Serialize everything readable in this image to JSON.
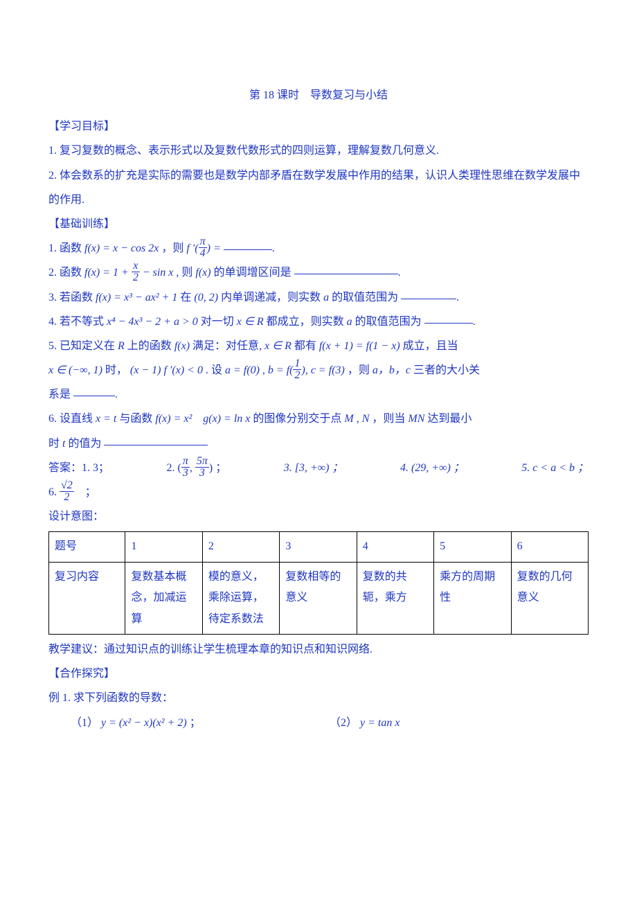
{
  "title": "第 18 课时　导数复习与小结",
  "section_objectives": "【学习目标】",
  "objectives": [
    "1. 复习复数的概念、表示形式以及复数代数形式的四则运算，理解复数几何意义.",
    "2. 体会数系的扩充是实际的需要也是数学内部矛盾在数学发展中作用的结果，认识人类理性思维在数学发展中的作用."
  ],
  "section_basic": "【基础训练】",
  "q1_pre": "1. 函数 ",
  "q1_formula_a": "f(x) = x − cos 2x",
  "q1_mid": " ，则 ",
  "q1_formula_b_left": "f ′(",
  "q1_frac_num": "π",
  "q1_frac_den": "4",
  "q1_formula_b_right": ") = ",
  "q1_dot": ".",
  "q2_pre": "2. 函数 ",
  "q2_formula_a_left": "f(x) = 1 + ",
  "q2_frac_num": "x",
  "q2_frac_den": "2",
  "q2_formula_a_right": " − sin x",
  "q2_mid": " , 则 ",
  "q2_formula_b": "f(x)",
  "q2_post": " 的单调增区间是",
  "q2_dot": ".",
  "q3_pre": "3. 若函数 ",
  "q3_formula_a": "f(x) = x³ − ax² + 1",
  "q3_mid_a": " 在 ",
  "q3_formula_b": "(0, 2)",
  "q3_mid_b": " 内单调递减，则实数 ",
  "q3_formula_c": "a",
  "q3_post": " 的取值范围为",
  "q3_dot": ".",
  "q4_pre": "4. 若不等式 ",
  "q4_formula_a": "x⁴ − 4x³ − 2 + a > 0",
  "q4_mid_a": " 对一切 ",
  "q4_formula_b": "x ∈ R",
  "q4_mid_b": " 都成立，则实数 ",
  "q4_formula_c": "a",
  "q4_post": " 的取值范围为",
  "q4_dot": ".",
  "q5_pre": "5. 已知定义在 ",
  "q5_R": "R",
  "q5_a": " 上的函数 ",
  "q5_fx": "f(x)",
  "q5_b": " 满足：对任意, ",
  "q5_xr": "x ∈ R",
  "q5_c": " 都有 ",
  "q5_eq1": "f(x + 1) = f(1 − x)",
  "q5_d": " 成立，且当",
  "q5_l2_a": "x ∈ (−∞, 1)",
  "q5_l2_b": " 时，",
  "q5_l2_c": "(x − 1) f ′(x) < 0",
  "q5_l2_d": " . 设 ",
  "q5_l2_e": "a = f(0)",
  "q5_l2_f": " , ",
  "q5_l2_g_left": "b = f(",
  "q5_l2_frac_num": "1",
  "q5_l2_frac_den": "2",
  "q5_l2_g_right": "), c = ",
  "q5_l2_h": "f(3)",
  "q5_l2_i": " ，则 ",
  "q5_l2_j": "a，b，c",
  "q5_l2_k": " 三者的大小关",
  "q5_l3": "系是 ",
  "q5_dot": ".",
  "q6_pre": "6. 设直线 ",
  "q6_a": "x = t",
  "q6_b": " 与函数 ",
  "q6_c": "f(x) = x²　g(x) = ln x",
  "q6_d": " 的图像分别交于点 ",
  "q6_e": "M , N",
  "q6_f": " ，则当 ",
  "q6_g": "MN",
  "q6_h": " 达到最小",
  "q6_l2_a": "时 ",
  "q6_l2_b": "t",
  "q6_l2_c": " 的值为",
  "ans_label": "答案：1. 3；",
  "ans2_a": "2. (",
  "ans2_num1": "π",
  "ans2_den1": "3",
  "ans2_comma": ", ",
  "ans2_num2": "5π",
  "ans2_den2": "3",
  "ans2_b": ") ；",
  "ans3": "3.  [3, +∞) ；",
  "ans4": "4. (29, +∞) ；",
  "ans5": "5. c < a < b ；",
  "ans6_a": "6. ",
  "ans6_num": "√2",
  "ans6_den": "2",
  "ans6_b": "　；",
  "design_label": "设计意图：",
  "table": {
    "head": [
      "题号",
      "1",
      "2",
      "3",
      "4",
      "5",
      "6"
    ],
    "row_label": "复习内容",
    "cells": [
      "复数基本概念，加减运算",
      "模的意义，乘除运算，待定系数法",
      "复数相等的意义",
      "复数的共轭，乘方",
      "乘方的周期性",
      "复数的几何意义"
    ]
  },
  "teach_note": "教学建议：通过知识点的训练让学生梳理本章的知识点和知识网络.",
  "section_coop": "【合作探究】",
  "ex1_label": "例 1. 求下列函数的导数：",
  "ex1_1_a": "（1）",
  "ex1_1_b": "y = (x² − x)(x² + 2)",
  "ex1_1_c": " ；",
  "ex1_2_a": "（2）",
  "ex1_2_b": "y = tan x",
  "fill_widths": {
    "q1": 70,
    "q2": 150,
    "q3": 80,
    "q4": 70,
    "q5": 60,
    "q6": 150
  }
}
